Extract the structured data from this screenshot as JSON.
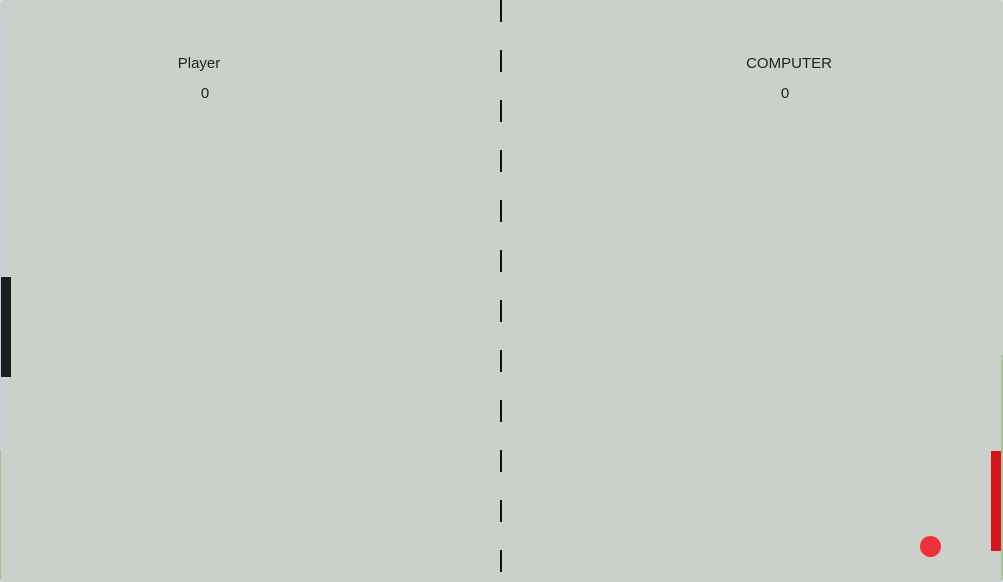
{
  "scoreboard": {
    "player_label": "Player",
    "player_score": "0",
    "computer_label": "COMPUTER",
    "computer_score": "0"
  },
  "colors": {
    "court": "#cbd0cb",
    "player_paddle": "#1d1d1d",
    "computer_paddle": "#d8141b",
    "ball": "#ef3038",
    "net": "#111111"
  }
}
